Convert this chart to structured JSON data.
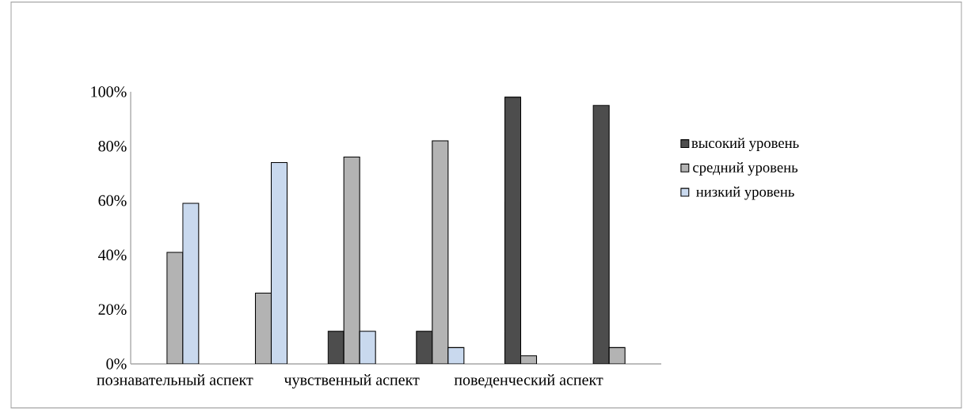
{
  "chart_data": {
    "type": "bar",
    "categories": [
      "познавательный аспект",
      null,
      "чувственный аспект",
      null,
      "поведенческий аспект",
      null
    ],
    "series": [
      {
        "name": "высокий уровень",
        "color": "#4d4d4d",
        "values": [
          null,
          null,
          12,
          12,
          98,
          95
        ]
      },
      {
        "name": "средний уровень",
        "color": "#b3b3b3",
        "values": [
          41,
          26,
          76,
          82,
          3,
          6
        ]
      },
      {
        "name": "низкий уровень",
        "color": "#c9d9ee",
        "values": [
          59,
          74,
          12,
          6,
          null,
          null
        ]
      }
    ],
    "ylim": [
      0,
      100
    ],
    "yticks": [
      {
        "value": 0,
        "label": "0%"
      },
      {
        "value": 20,
        "label": "20%"
      },
      {
        "value": 40,
        "label": "40%"
      },
      {
        "value": 60,
        "label": "60%"
      },
      {
        "value": 80,
        "label": "80%"
      },
      {
        "value": 100,
        "label": "100%"
      }
    ],
    "legend": "right",
    "grid": false
  }
}
